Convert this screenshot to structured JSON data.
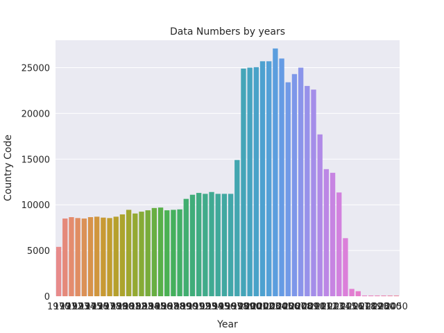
{
  "chart_data": {
    "type": "bar",
    "title": "Data Numbers by years",
    "xlabel": "Year",
    "ylabel": "Country Code",
    "ylim": [
      0,
      28000
    ],
    "y_ticks": [
      0,
      5000,
      10000,
      15000,
      20000,
      25000
    ],
    "grid": true,
    "categories": [
      "1970",
      "1971",
      "1972",
      "1973",
      "1974",
      "1975",
      "1976",
      "1977",
      "1978",
      "1979",
      "1980",
      "1981",
      "1982",
      "1983",
      "1984",
      "1985",
      "1986",
      "1987",
      "1988",
      "1989",
      "1990",
      "1991",
      "1992",
      "1993",
      "1994",
      "1995",
      "1996",
      "1997",
      "1998",
      "1999",
      "2000",
      "2001",
      "2002",
      "2003",
      "2004",
      "2005",
      "2006",
      "2007",
      "2008",
      "2009",
      "2010",
      "2011",
      "2012",
      "2013",
      "2014",
      "2015",
      "2016",
      "2017",
      "2018",
      "2019",
      "2020",
      "2030",
      "2040",
      "2050"
    ],
    "values": [
      5400,
      8500,
      8650,
      8550,
      8500,
      8650,
      8700,
      8600,
      8550,
      8700,
      8950,
      9450,
      9050,
      9250,
      9400,
      9650,
      9700,
      9400,
      9450,
      9500,
      10650,
      11100,
      11300,
      11200,
      11400,
      11200,
      11200,
      11200,
      14900,
      24900,
      25000,
      25050,
      25700,
      25700,
      27100,
      26000,
      23400,
      24300,
      25000,
      23000,
      22600,
      17700,
      13900,
      13500,
      11350,
      6350,
      800,
      550,
      80,
      80,
      80,
      80,
      80,
      80
    ],
    "colors": [
      "#e88b8b",
      "#e5897a",
      "#e48c6e",
      "#e08d62",
      "#db9156",
      "#d7934a",
      "#d0963d",
      "#c89a33",
      "#c09d2e",
      "#b6a02c",
      "#aca42d",
      "#a0a72f",
      "#94a932",
      "#86ab36",
      "#78ac3b",
      "#68ae42",
      "#58b04a",
      "#4ab153",
      "#44b05c",
      "#42af66",
      "#41ae70",
      "#40ad79",
      "#40ac82",
      "#40ab8a",
      "#40aa92",
      "#40a99a",
      "#41a8a1",
      "#42a7a9",
      "#43a6b0",
      "#44a5b8",
      "#46a4c0",
      "#49a2c8",
      "#4da1d0",
      "#53a0d7",
      "#5b9ede",
      "#659be4",
      "#719ae7",
      "#7d97e9",
      "#8a94ea",
      "#9791ea",
      "#a48de9",
      "#b08ae7",
      "#bc87e5",
      "#c784e2",
      "#d281de",
      "#db7fd9",
      "#e27dd2",
      "#e67ccb",
      "#e87cc3",
      "#e97dbb",
      "#ea7eb3",
      "#ea7fab",
      "#ea81a3",
      "#ea839b"
    ]
  }
}
